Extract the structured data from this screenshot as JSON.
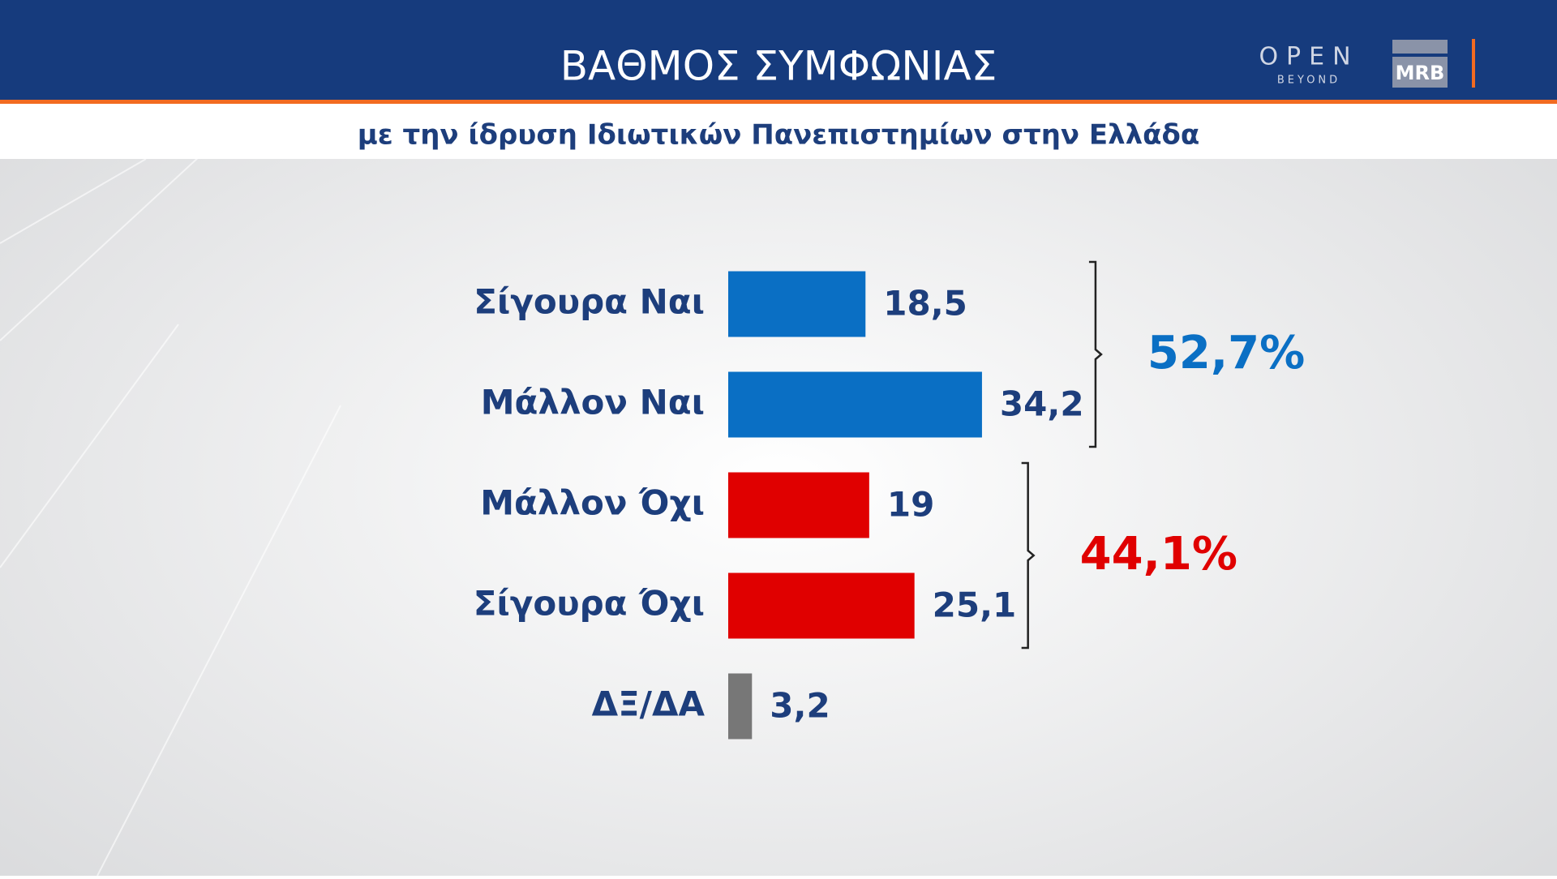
{
  "logos": [
    "OPEN",
    "BEYOND",
    "MRB"
  ],
  "chart_data": {
    "type": "barh",
    "title": "ΒΑΘΜΟΣ ΣΥΜΦΩΝΙΑΣ",
    "subtitle": "με την ίδρυση Ιδιωτικών Πανεπιστημίων στην Ελλάδα",
    "categories": [
      "Σίγουρα Ναι",
      "Μάλλον Ναι",
      "Μάλλον Όχι",
      "Σίγουρα Όχι",
      "ΔΞ/ΔΑ"
    ],
    "values": [
      18.5,
      34.2,
      19,
      25.1,
      3.2
    ],
    "value_labels": [
      "18,5",
      "34,2",
      "19",
      "25,1",
      "3,2"
    ],
    "colors": [
      "#0a6fc4",
      "#0a6fc4",
      "#e00000",
      "#e00000",
      "#777777"
    ],
    "annotations": [
      {
        "text": "52,7%",
        "color": "#0a6fc4"
      },
      {
        "text": "44,1%",
        "color": "#e00000"
      }
    ]
  }
}
